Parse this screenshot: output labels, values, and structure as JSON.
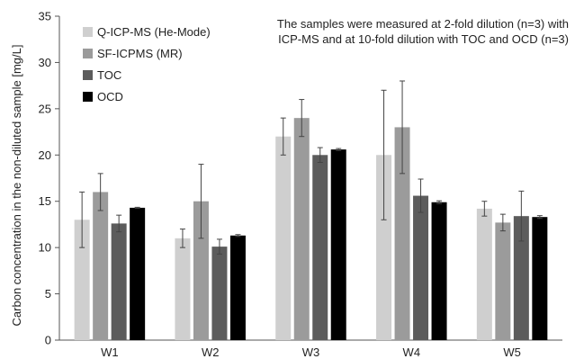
{
  "chart_data": {
    "type": "bar",
    "categories": [
      "W1",
      "W2",
      "W3",
      "W4",
      "W5"
    ],
    "series": [
      {
        "name": "Q-ICP-MS (He-Mode)",
        "color": "#cfcfcf",
        "values": [
          13,
          11,
          22,
          20,
          14.2
        ],
        "errors": [
          3,
          1,
          2,
          7,
          0.8
        ]
      },
      {
        "name": "SF-ICPMS (MR)",
        "color": "#9b9b9b",
        "values": [
          16,
          15,
          24,
          23,
          12.7
        ],
        "errors": [
          2,
          4,
          2,
          5,
          0.9
        ]
      },
      {
        "name": "TOC",
        "color": "#5c5c5c",
        "values": [
          12.6,
          10.1,
          20,
          15.6,
          13.4
        ],
        "errors": [
          0.9,
          0.8,
          0.8,
          1.8,
          2.7
        ]
      },
      {
        "name": "OCD",
        "color": "#000000",
        "values": [
          14.3,
          11.3,
          20.6,
          14.9,
          13.3
        ],
        "errors": [
          0.05,
          0.1,
          0.1,
          0.15,
          0.15
        ]
      }
    ],
    "ylabel": "Carbon concentration in the non-diluted sample [mg/L]",
    "xlabel": "",
    "ylim": [
      0,
      35
    ],
    "yticks": [
      0,
      5,
      10,
      15,
      20,
      25,
      30,
      35
    ],
    "annotation": [
      "The samples were measured at 2-fold dilution (n=3) with",
      "ICP-MS and at 10-fold dilution with TOC and OCD (n=3)"
    ],
    "legend_position": "top-left",
    "grid": false
  }
}
